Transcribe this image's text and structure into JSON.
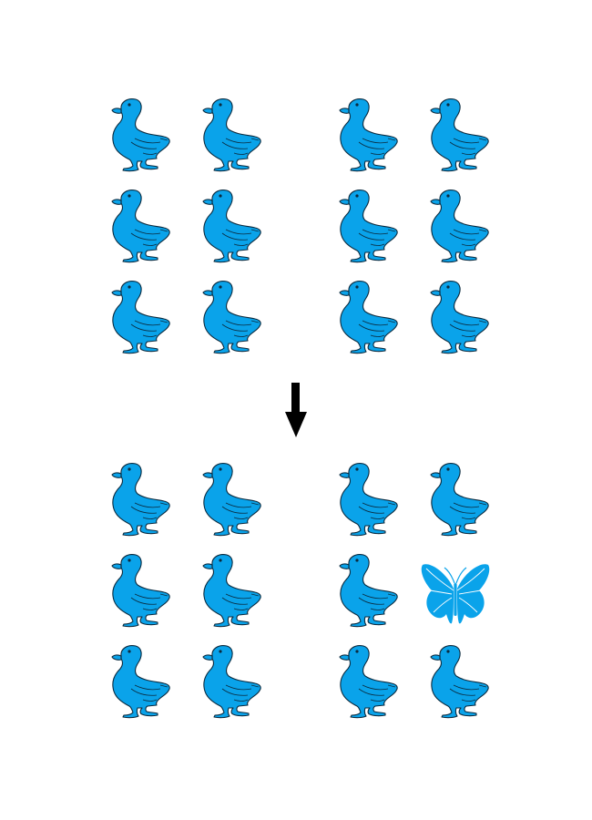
{
  "colors": {
    "fill": "#0aa3ea",
    "stroke": "#0b2a3e",
    "arrow": "#000000",
    "background": "#ffffff"
  },
  "groups": [
    {
      "name": "before",
      "quadrants": [
        {
          "name": "left",
          "rows": [
            [
              "duck",
              "duck"
            ],
            [
              "duck",
              "duck"
            ],
            [
              "duck",
              "duck"
            ]
          ]
        },
        {
          "name": "right",
          "rows": [
            [
              "duck",
              "duck"
            ],
            [
              "duck",
              "duck"
            ],
            [
              "duck",
              "duck"
            ]
          ]
        }
      ]
    },
    {
      "name": "after",
      "quadrants": [
        {
          "name": "left",
          "rows": [
            [
              "duck",
              "duck"
            ],
            [
              "duck",
              "duck"
            ],
            [
              "duck",
              "duck"
            ]
          ]
        },
        {
          "name": "right",
          "rows": [
            [
              "duck",
              "duck"
            ],
            [
              "duck",
              "butterfly"
            ],
            [
              "duck",
              "duck"
            ]
          ]
        }
      ]
    }
  ],
  "arrow": {
    "icon": "arrow-down-icon",
    "direction": "down"
  }
}
